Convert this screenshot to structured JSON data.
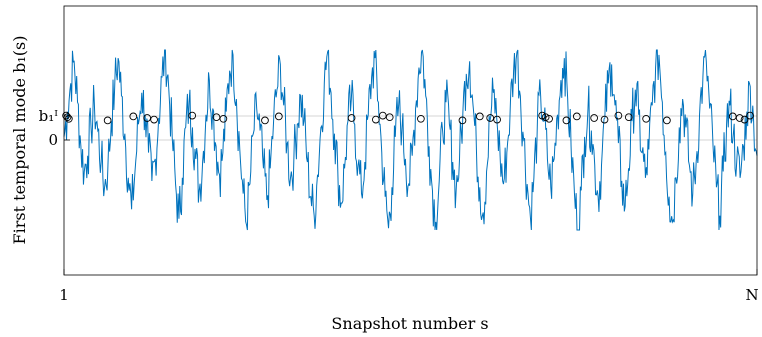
{
  "chart_data": {
    "type": "line",
    "xlabel": "Snapshot number s",
    "ylabel": "First temporal mode b₁(s)",
    "x_ticks": [
      "1",
      "N"
    ],
    "y_ticks": [
      "0",
      "b₁ᴵ"
    ],
    "xlim": [
      "1",
      "N"
    ],
    "grid": false,
    "series": [
      {
        "values": [
          0.05,
          0.45,
          0.9,
          1.25,
          0.6,
          -0.1,
          -0.5,
          -0.25,
          0.2,
          0.55,
          0.15,
          -0.35,
          -0.75,
          -0.4,
          0.3,
          0.85,
          1.3,
          0.7,
          0.1,
          -0.6,
          -1.1,
          -0.5,
          0.25,
          0.75,
          0.4,
          -0.2,
          -0.65,
          -0.3,
          0.35,
          1.0,
          1.45,
          0.8,
          0.05,
          -0.7,
          -1.25,
          -0.6,
          0.2,
          0.6,
          0.2,
          -0.3,
          -0.8,
          -0.35,
          0.4,
          0.95,
          0.5,
          -0.1,
          -0.55,
          -0.2,
          0.45,
          1.1,
          1.35,
          0.65,
          -0.15,
          -0.85,
          -1.35,
          -0.7,
          0.1,
          0.5,
          0.15,
          -0.45,
          -0.95,
          -0.45,
          0.3,
          0.8,
          1.2,
          0.55,
          -0.05,
          -0.6,
          -0.3,
          0.25,
          0.7,
          0.3,
          -0.35,
          -0.9,
          -1.2,
          -0.55,
          0.2,
          0.9,
          1.4,
          0.75,
          0.1,
          -0.5,
          -1.0,
          -0.45,
          0.3,
          0.65,
          0.25,
          -0.4,
          -0.85,
          -0.35,
          0.4,
          1.0,
          1.3,
          0.6,
          -0.2,
          -0.9,
          -1.4,
          -0.75,
          0.05,
          0.55,
          0.2,
          -0.3,
          -0.7,
          -0.25,
          0.5,
          1.15,
          1.45,
          0.7,
          -0.1,
          -0.8,
          -1.3,
          -0.65,
          0.15,
          0.6,
          0.25,
          -0.35,
          -0.8,
          -0.3,
          0.45,
          1.05,
          1.25,
          0.55,
          -0.15,
          -0.75,
          -1.15,
          -0.5,
          0.3,
          0.75,
          0.35,
          -0.25,
          -0.7,
          -0.2,
          0.5,
          1.1,
          1.4,
          0.7,
          0.0,
          -0.7,
          -1.25,
          -0.6,
          0.2,
          0.7,
          0.3,
          -0.3,
          -0.75,
          -0.3,
          0.4,
          0.95,
          1.3,
          0.65,
          -0.1,
          -0.85,
          -1.45,
          -0.8,
          0.05,
          0.5,
          0.15,
          -0.4,
          -0.9,
          -0.4,
          0.35,
          0.9,
          1.2,
          0.55,
          -0.05,
          -0.65,
          -1.05,
          -0.45,
          0.3,
          0.8,
          0.4,
          -0.2,
          -0.6,
          -0.15,
          0.55,
          1.15,
          1.35,
          0.6,
          -0.2,
          -0.9,
          -1.3,
          -0.6,
          0.2,
          0.65,
          0.2,
          -0.4,
          -0.85,
          -0.35,
          0.4,
          1.0,
          1.25,
          0.5,
          -0.1,
          -0.75,
          -1.2,
          -0.5,
          0.25,
          0.55,
          0.1,
          -0.35,
          -0.6,
          -0.1,
          0.45,
          0.85,
          0.3,
          -0.25
        ]
      }
    ],
    "markers": {
      "style": "open circle",
      "y": "b₁ᴵ",
      "x": [
        0.003,
        0.005,
        0.007,
        0.063,
        0.1,
        0.12,
        0.13,
        0.185,
        0.22,
        0.23,
        0.29,
        0.31,
        0.415,
        0.45,
        0.46,
        0.47,
        0.515,
        0.575,
        0.6,
        0.615,
        0.625,
        0.69,
        0.695,
        0.7,
        0.725,
        0.74,
        0.765,
        0.78,
        0.8,
        0.815,
        0.84,
        0.87,
        0.965,
        0.975,
        0.982,
        0.99
      ]
    },
    "colors": {
      "line": "#0072BD",
      "markers": "#000000",
      "reference": "#c8c8c8"
    }
  }
}
